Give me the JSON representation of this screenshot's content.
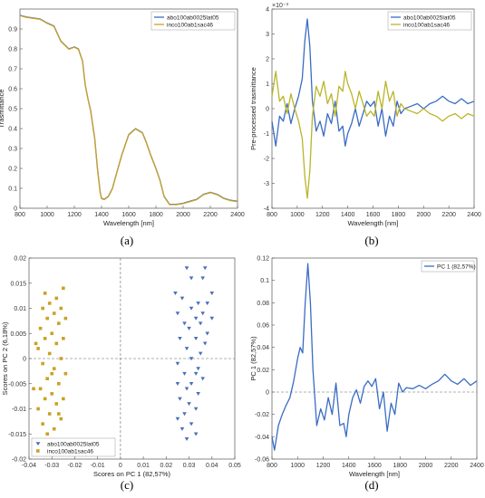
{
  "figure_labels": [
    "(a)",
    "(b)",
    "(c)",
    "(d)"
  ],
  "chart_data": [
    {
      "type": "line",
      "panel_label": "(a)",
      "xlabel": "Wavelength [nm]",
      "ylabel": "Trasmittance",
      "xlim": [
        800,
        2400
      ],
      "ylim": [
        0,
        1
      ],
      "xticks": [
        800,
        1000,
        1200,
        1400,
        1600,
        1800,
        2000,
        2200,
        2400
      ],
      "yticks": [
        0,
        0.1,
        0.2,
        0.3,
        0.4,
        0.5,
        0.6,
        0.7,
        0.8,
        0.9
      ],
      "legend_position": "top-right",
      "grid": false,
      "series": [
        {
          "name": "abo100ab0025lat05",
          "color": "#3a6cc4",
          "x": [
            800,
            820,
            850,
            900,
            950,
            1000,
            1050,
            1100,
            1130,
            1160,
            1200,
            1230,
            1260,
            1280,
            1300,
            1320,
            1350,
            1370,
            1390,
            1400,
            1420,
            1450,
            1480,
            1500,
            1550,
            1600,
            1650,
            1700,
            1730,
            1760,
            1800,
            1830,
            1860,
            1900,
            1950,
            2000,
            2050,
            2100,
            2150,
            2200,
            2250,
            2300,
            2350,
            2400
          ],
          "y": [
            0.97,
            0.965,
            0.96,
            0.955,
            0.95,
            0.93,
            0.915,
            0.84,
            0.82,
            0.8,
            0.81,
            0.8,
            0.74,
            0.62,
            0.55,
            0.49,
            0.35,
            0.2,
            0.08,
            0.05,
            0.045,
            0.06,
            0.1,
            0.15,
            0.27,
            0.37,
            0.4,
            0.38,
            0.33,
            0.27,
            0.2,
            0.14,
            0.06,
            0.02,
            0.02,
            0.025,
            0.035,
            0.045,
            0.07,
            0.08,
            0.07,
            0.05,
            0.04,
            0.035
          ]
        },
        {
          "name": "inco100ab1sac46",
          "color": "#c9a227",
          "x": [
            800,
            820,
            850,
            900,
            950,
            1000,
            1050,
            1100,
            1130,
            1160,
            1200,
            1230,
            1260,
            1280,
            1300,
            1320,
            1350,
            1370,
            1390,
            1400,
            1420,
            1450,
            1480,
            1500,
            1550,
            1600,
            1650,
            1700,
            1730,
            1760,
            1800,
            1830,
            1860,
            1900,
            1950,
            2000,
            2050,
            2100,
            2150,
            2200,
            2250,
            2300,
            2350,
            2400
          ],
          "y": [
            0.968,
            0.963,
            0.958,
            0.953,
            0.948,
            0.928,
            0.913,
            0.838,
            0.818,
            0.798,
            0.808,
            0.798,
            0.738,
            0.618,
            0.548,
            0.488,
            0.348,
            0.198,
            0.078,
            0.048,
            0.043,
            0.058,
            0.098,
            0.148,
            0.268,
            0.368,
            0.398,
            0.378,
            0.328,
            0.268,
            0.198,
            0.138,
            0.058,
            0.018,
            0.018,
            0.023,
            0.033,
            0.043,
            0.068,
            0.078,
            0.068,
            0.048,
            0.038,
            0.033
          ]
        }
      ]
    },
    {
      "type": "line",
      "panel_label": "(b)",
      "xlabel": "Wavelength [nm]",
      "ylabel": "Pre-processed trasmittance",
      "exponent_label": "×10⁻³",
      "xlim": [
        800,
        2400
      ],
      "ylim": [
        -4,
        4
      ],
      "xticks": [
        800,
        1000,
        1200,
        1400,
        1600,
        1800,
        2000,
        2200,
        2400
      ],
      "yticks": [
        -4,
        -3,
        -2,
        -1,
        0,
        1,
        2,
        3,
        4
      ],
      "legend_position": "top-right",
      "grid": false,
      "series": [
        {
          "name": "abo100ab0025lat05",
          "color": "#3a6cc4",
          "x": [
            800,
            830,
            860,
            890,
            920,
            950,
            980,
            1010,
            1040,
            1060,
            1080,
            1100,
            1120,
            1150,
            1180,
            1210,
            1240,
            1270,
            1300,
            1330,
            1360,
            1380,
            1400,
            1430,
            1460,
            1490,
            1520,
            1550,
            1580,
            1610,
            1640,
            1670,
            1700,
            1730,
            1760,
            1790,
            1820,
            1850,
            1900,
            1950,
            2000,
            2050,
            2100,
            2150,
            2200,
            2250,
            2300,
            2350,
            2400
          ],
          "y": [
            -0.5,
            -1.5,
            -0.3,
            -0.5,
            0.2,
            -0.6,
            0.0,
            0.5,
            1.2,
            2.7,
            3.6,
            2.5,
            0.3,
            -0.9,
            -0.5,
            -1.1,
            -0.2,
            -0.6,
            0.3,
            -0.9,
            -0.7,
            -1.5,
            -1.0,
            -0.6,
            0.0,
            -0.7,
            -0.2,
            0.3,
            0.1,
            0.3,
            -0.7,
            0.0,
            -1.1,
            -0.3,
            -0.7,
            0.3,
            -0.2,
            0.0,
            0.1,
            0.2,
            0.0,
            0.2,
            0.3,
            0.5,
            0.3,
            0.2,
            0.4,
            0.2,
            0.3
          ]
        },
        {
          "name": "inco100ab1sac46",
          "color": "#b9b528",
          "x": [
            800,
            830,
            860,
            890,
            920,
            950,
            980,
            1010,
            1040,
            1060,
            1080,
            1100,
            1120,
            1150,
            1180,
            1210,
            1240,
            1270,
            1300,
            1330,
            1360,
            1380,
            1400,
            1430,
            1460,
            1490,
            1520,
            1550,
            1580,
            1610,
            1640,
            1670,
            1700,
            1730,
            1760,
            1790,
            1820,
            1850,
            1900,
            1950,
            2000,
            2050,
            2100,
            2150,
            2200,
            2250,
            2300,
            2350,
            2400
          ],
          "y": [
            0.5,
            1.5,
            0.3,
            0.5,
            -0.2,
            0.6,
            0.0,
            -0.5,
            -1.2,
            -2.7,
            -3.6,
            -2.5,
            -0.3,
            0.9,
            0.5,
            1.1,
            0.2,
            0.6,
            -0.3,
            0.9,
            0.7,
            1.5,
            1.0,
            0.6,
            0.0,
            0.7,
            0.2,
            -0.3,
            -0.1,
            -0.3,
            0.7,
            0.0,
            1.1,
            0.3,
            0.7,
            -0.3,
            0.2,
            0.0,
            -0.1,
            -0.2,
            0.0,
            -0.2,
            -0.3,
            -0.5,
            -0.3,
            -0.2,
            -0.4,
            -0.2,
            -0.3
          ]
        }
      ]
    },
    {
      "type": "scatter",
      "panel_label": "(c)",
      "xlabel": "Scores on PC 1 (82,57%)",
      "ylabel": "Scores on PC 2 (6,18%)",
      "xlim": [
        -0.04,
        0.05
      ],
      "ylim": [
        -0.02,
        0.02
      ],
      "xticks": [
        -0.04,
        -0.03,
        -0.02,
        -0.01,
        0,
        0.01,
        0.02,
        0.03,
        0.04,
        0.05
      ],
      "yticks": [
        -0.02,
        -0.015,
        -0.01,
        -0.005,
        0,
        0.005,
        0.01,
        0.015,
        0.02
      ],
      "legend_position": "bottom-left",
      "grid": false,
      "series": [
        {
          "name": "abo100ab0025lat05",
          "color": "#4a6fb8",
          "marker": "triangle-down",
          "points": [
            [
              0.029,
              0.018
            ],
            [
              0.037,
              0.018
            ],
            [
              0.031,
              0.016
            ],
            [
              0.036,
              0.016
            ],
            [
              0.024,
              0.013
            ],
            [
              0.04,
              0.013
            ],
            [
              0.027,
              0.012
            ],
            [
              0.034,
              0.011
            ],
            [
              0.038,
              0.011
            ],
            [
              0.031,
              0.01
            ],
            [
              0.025,
              0.009
            ],
            [
              0.036,
              0.009
            ],
            [
              0.033,
              0.008
            ],
            [
              0.04,
              0.008
            ],
            [
              0.028,
              0.007
            ],
            [
              0.035,
              0.007
            ],
            [
              0.03,
              0.006
            ],
            [
              0.038,
              0.005
            ],
            [
              0.026,
              0.004
            ],
            [
              0.033,
              0.004
            ],
            [
              0.037,
              0.003
            ],
            [
              0.029,
              0.002
            ],
            [
              0.035,
              0.001
            ],
            [
              0.031,
              0.0
            ],
            [
              0.025,
              -0.001
            ],
            [
              0.034,
              -0.002
            ],
            [
              0.028,
              -0.003
            ],
            [
              0.033,
              -0.003
            ],
            [
              0.036,
              -0.004
            ],
            [
              0.025,
              -0.005
            ],
            [
              0.031,
              -0.005
            ],
            [
              0.029,
              -0.006
            ],
            [
              0.034,
              -0.007
            ],
            [
              0.026,
              -0.008
            ],
            [
              0.03,
              -0.009
            ],
            [
              0.033,
              -0.01
            ],
            [
              0.028,
              -0.011
            ],
            [
              0.025,
              -0.012
            ],
            [
              0.031,
              -0.013
            ],
            [
              0.027,
              -0.014
            ],
            [
              0.033,
              -0.015
            ],
            [
              0.029,
              -0.016
            ]
          ]
        },
        {
          "name": "inco100ab1sac46",
          "color": "#c9a227",
          "marker": "square",
          "points": [
            [
              -0.033,
              0.013
            ],
            [
              -0.025,
              0.014
            ],
            [
              -0.028,
              0.012
            ],
            [
              -0.031,
              0.011
            ],
            [
              -0.026,
              0.01
            ],
            [
              -0.034,
              0.01
            ],
            [
              -0.029,
              0.009
            ],
            [
              -0.032,
              0.008
            ],
            [
              -0.024,
              0.008
            ],
            [
              -0.027,
              0.007
            ],
            [
              -0.035,
              0.006
            ],
            [
              -0.03,
              0.005
            ],
            [
              -0.025,
              0.004
            ],
            [
              -0.033,
              0.004
            ],
            [
              -0.028,
              0.003
            ],
            [
              -0.036,
              0.002
            ],
            [
              -0.031,
              0.001
            ],
            [
              -0.026,
              0.0
            ],
            [
              -0.034,
              -0.001
            ],
            [
              -0.029,
              -0.002
            ],
            [
              -0.024,
              -0.003
            ],
            [
              -0.032,
              -0.004
            ],
            [
              -0.027,
              -0.005
            ],
            [
              -0.035,
              -0.006
            ],
            [
              -0.03,
              -0.007
            ],
            [
              -0.025,
              -0.008
            ],
            [
              -0.033,
              -0.008
            ],
            [
              -0.028,
              -0.009
            ],
            [
              -0.036,
              -0.01
            ],
            [
              -0.031,
              -0.011
            ],
            [
              -0.026,
              -0.012
            ],
            [
              -0.034,
              -0.013
            ],
            [
              -0.029,
              -0.014
            ],
            [
              -0.032,
              -0.015
            ],
            [
              -0.027,
              -0.011
            ],
            [
              -0.03,
              -0.003
            ],
            [
              -0.038,
              -0.006
            ],
            [
              -0.037,
              0.003
            ]
          ]
        }
      ]
    },
    {
      "type": "line",
      "panel_label": "(d)",
      "xlabel": "Wavelength [nm]",
      "ylabel": "PC 1 (82,57%)",
      "xlim": [
        800,
        2400
      ],
      "ylim": [
        -0.06,
        0.12
      ],
      "xticks": [
        800,
        1000,
        1200,
        1400,
        1600,
        1800,
        2000,
        2200,
        2400
      ],
      "yticks": [
        -0.06,
        -0.04,
        -0.02,
        0,
        0.02,
        0.04,
        0.06,
        0.08,
        0.1,
        0.12
      ],
      "legend_position": "top-right",
      "grid": false,
      "series": [
        {
          "name": "PC 1 (82,57%)",
          "color": "#3a6cc4",
          "x": [
            800,
            820,
            850,
            880,
            910,
            940,
            970,
            1000,
            1020,
            1040,
            1060,
            1080,
            1100,
            1120,
            1150,
            1180,
            1210,
            1240,
            1270,
            1300,
            1330,
            1360,
            1380,
            1400,
            1430,
            1460,
            1490,
            1520,
            1550,
            1580,
            1610,
            1640,
            1670,
            1700,
            1730,
            1760,
            1790,
            1820,
            1850,
            1900,
            1950,
            2000,
            2050,
            2100,
            2150,
            2200,
            2250,
            2300,
            2350,
            2400
          ],
          "y": [
            -0.04,
            -0.052,
            -0.03,
            -0.02,
            -0.012,
            -0.005,
            0.01,
            0.03,
            0.04,
            0.035,
            0.08,
            0.115,
            0.08,
            0.02,
            -0.03,
            -0.015,
            -0.025,
            -0.005,
            -0.02,
            0.008,
            -0.03,
            -0.028,
            -0.04,
            -0.02,
            -0.005,
            0.002,
            -0.01,
            0.005,
            0.01,
            0.005,
            0.012,
            -0.015,
            0.0,
            -0.035,
            -0.01,
            -0.02,
            0.008,
            0.0,
            0.004,
            0.003,
            0.006,
            0.003,
            0.007,
            0.01,
            0.016,
            0.01,
            0.007,
            0.012,
            0.006,
            0.01
          ]
        }
      ]
    }
  ]
}
